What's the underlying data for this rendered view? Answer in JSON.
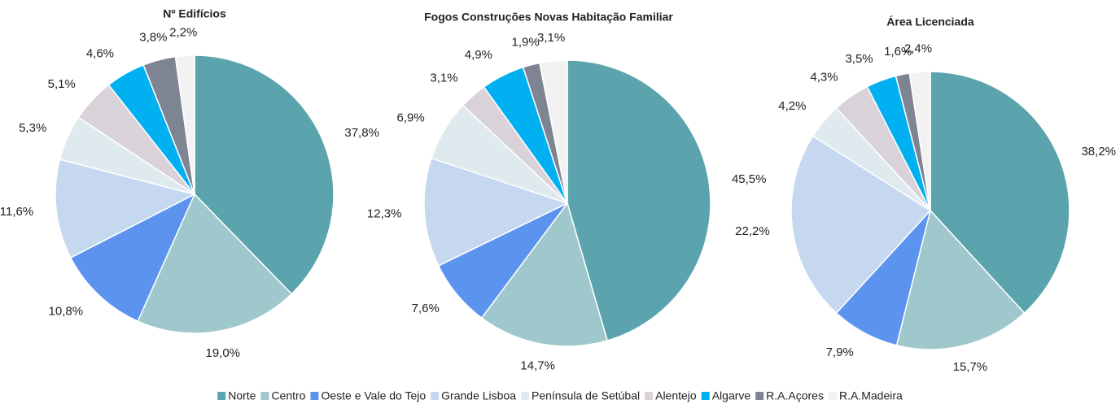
{
  "legend": {
    "categories": [
      "Norte",
      "Centro",
      "Oeste e Vale do Tejo",
      "Grande Lisboa",
      "Península de Setúbal",
      "Alentejo",
      "Algarve",
      "R.A.Açores",
      "R.A.Madeira"
    ],
    "colors": [
      "#5ba3ad",
      "#9fc8cc",
      "#5b93ef",
      "#c5d8f0",
      "#deeaee",
      "#d9d3d9",
      "#00b0f0",
      "#7f8492",
      "#f2f2f2"
    ]
  },
  "chart_data": [
    {
      "type": "pie",
      "title": "Nº Edifícios",
      "values": [
        37.8,
        19.0,
        10.8,
        11.6,
        5.3,
        5.1,
        4.6,
        3.8,
        2.2
      ],
      "value_labels": [
        "37,8%",
        "19,0%",
        "10,8%",
        "11,6%",
        "5,3%",
        "5,1%",
        "4,6%",
        "3,8%",
        "2,2%"
      ]
    },
    {
      "type": "pie",
      "title": "Fogos Construções Novas Habitação Familiar",
      "values": [
        45.5,
        14.7,
        7.6,
        12.3,
        6.9,
        3.1,
        4.9,
        1.9,
        3.1
      ],
      "value_labels": [
        "45,5%",
        "14,7%",
        "7,6%",
        "12,3%",
        "6,9%",
        "3,1%",
        "4,9%",
        "1,9%",
        "3,1%"
      ]
    },
    {
      "type": "pie",
      "title": "Área Licenciada",
      "values": [
        38.2,
        15.7,
        7.9,
        22.2,
        4.2,
        4.3,
        3.5,
        1.6,
        2.4
      ],
      "value_labels": [
        "38,2%",
        "15,7%",
        "7,9%",
        "22,2%",
        "4,2%",
        "4,3%",
        "3,5%",
        "1,6%",
        "2,4%"
      ]
    }
  ]
}
